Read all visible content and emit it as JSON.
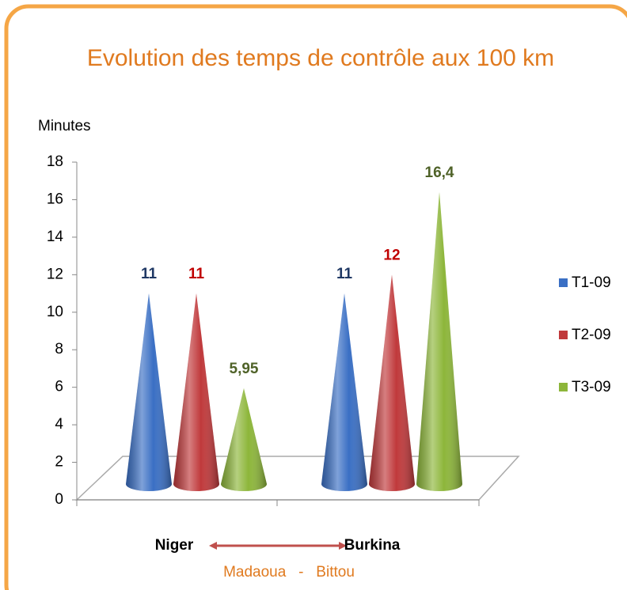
{
  "chart_data": {
    "type": "cone",
    "title": "Evolution des temps de contrôle aux 100 km",
    "y_label": "Minutes",
    "categories": [
      "Niger",
      "Burkina"
    ],
    "annotation": "Madaoua   -   Bittou",
    "series": [
      {
        "name": "T1-09",
        "color": "#3a6fc4",
        "label_color": "#1f3864",
        "values": [
          11,
          11
        ]
      },
      {
        "name": "T2-09",
        "color": "#c0393b",
        "label_color": "#c00000",
        "values": [
          11,
          12
        ]
      },
      {
        "name": "T3-09",
        "color": "#8db63a",
        "label_color": "#4f6228",
        "values": [
          5.95,
          16.4
        ],
        "value_labels": [
          "5,95",
          "16,4"
        ]
      }
    ],
    "ylim": [
      0,
      18
    ],
    "yticks": [
      0,
      2,
      4,
      6,
      8,
      10,
      12,
      14,
      16,
      18
    ],
    "legend": "right"
  }
}
